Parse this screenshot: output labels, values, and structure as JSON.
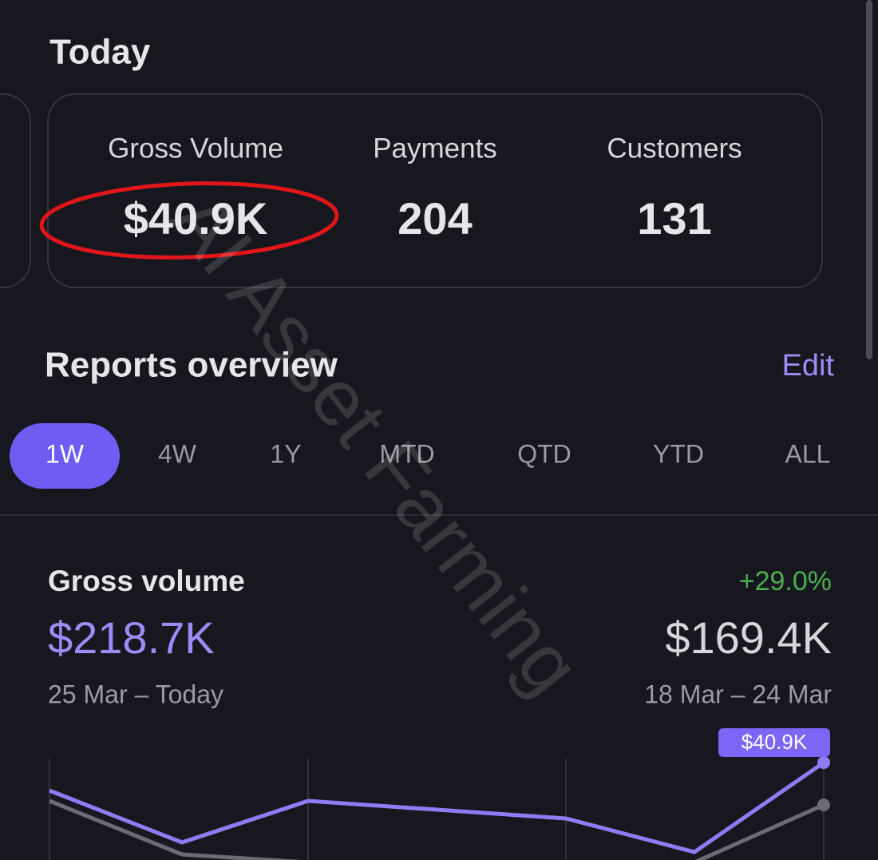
{
  "today": {
    "title": "Today",
    "metrics": [
      {
        "label": "Gross Volume",
        "value": "$40.9K"
      },
      {
        "label": "Payments",
        "value": "204"
      },
      {
        "label": "Customers",
        "value": "131"
      }
    ]
  },
  "reports": {
    "title": "Reports overview",
    "edit": "Edit",
    "tabs": [
      "1W",
      "4W",
      "1Y",
      "MTD",
      "QTD",
      "YTD",
      "ALL"
    ]
  },
  "gross_volume": {
    "title": "Gross volume",
    "change": "+29.0%",
    "current": "$218.7K",
    "previous": "$169.4K",
    "current_range": "25 Mar – Today",
    "previous_range": "18 Mar – 24 Mar",
    "tooltip": "$40.9K"
  },
  "watermark": "AI Asset Farming"
}
